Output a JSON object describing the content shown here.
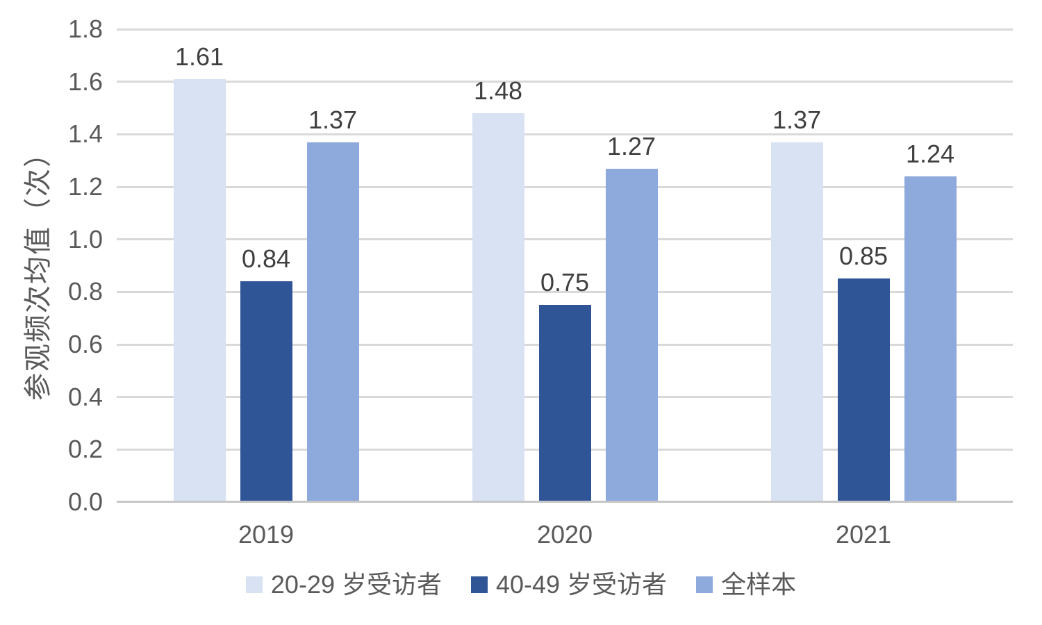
{
  "page": {
    "background": "#FFFFFF"
  },
  "chart_data": {
    "type": "bar",
    "title": "",
    "xlabel": "",
    "ylabel": "参观频次均值（次）",
    "categories": [
      "2019",
      "2020",
      "2021"
    ],
    "series": [
      {
        "name": "20-29 岁受访者",
        "color": "#D9E2F3",
        "values": [
          1.61,
          1.48,
          1.37
        ]
      },
      {
        "name": "40-49 岁受访者",
        "color": "#2F5597",
        "values": [
          0.84,
          0.75,
          0.85
        ]
      },
      {
        "name": "全样本",
        "color": "#8EA9DB",
        "values": [
          1.37,
          1.27,
          1.24
        ]
      }
    ],
    "data_labels": {
      "visible": true,
      "format": "0.00",
      "labels": [
        [
          "1.61",
          "1.48",
          "1.37"
        ],
        [
          "0.84",
          "0.75",
          "0.85"
        ],
        [
          "1.37",
          "1.27",
          "1.24"
        ]
      ]
    },
    "y_axis": {
      "min": 0,
      "max": 1.8,
      "step": 0.2,
      "tick_labels": [
        "0.0",
        "0.2",
        "0.4",
        "0.6",
        "0.8",
        "1.0",
        "1.2",
        "1.4",
        "1.6",
        "1.8"
      ]
    },
    "grid": true,
    "legend_position": "bottom",
    "style": {
      "grid_color": "#D9D9D9",
      "axis_line_color": "#C6C6C6",
      "tick_text_color": "#595959",
      "category_text_color": "#595959",
      "data_label_color": "#3F3F3F",
      "legend_text_color": "#595959",
      "axis_title_color": "#595959"
    }
  }
}
